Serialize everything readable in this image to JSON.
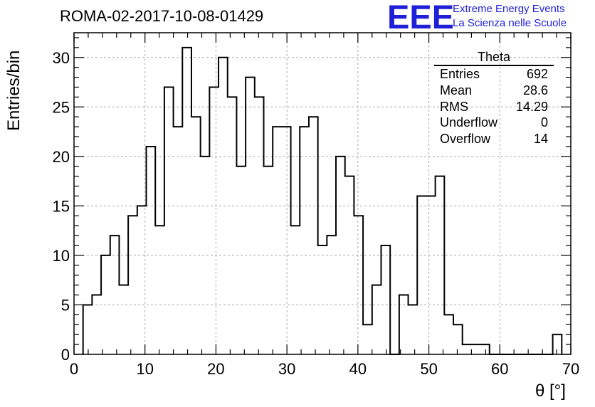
{
  "title": "ROMA-02-2017-10-08-01429",
  "logo": {
    "mark": "EEE",
    "line1": "Extreme Energy Events",
    "line2": "La Scienza nelle Scuole",
    "color": "#1f1fd8"
  },
  "stats": {
    "name": "Theta",
    "rows": [
      {
        "label": "Entries",
        "value": "692"
      },
      {
        "label": "Mean",
        "value": "28.6"
      },
      {
        "label": "RMS",
        "value": "14.29"
      },
      {
        "label": "Underflow",
        "value": "0"
      },
      {
        "label": "Overflow",
        "value": "14"
      }
    ]
  },
  "chart_data": {
    "type": "histogram",
    "xlabel": "θ [°]",
    "ylabel": "Entries/bin",
    "xlim": [
      0,
      70
    ],
    "ylim": [
      0,
      32.5
    ],
    "bin_width": 1.2727,
    "bin_edges_start": 1.2727,
    "values": [
      5,
      6,
      10,
      12,
      7,
      14,
      15,
      21,
      13,
      27,
      23,
      31,
      24,
      20,
      27,
      30,
      26,
      19,
      28,
      26,
      19,
      23,
      23,
      13,
      23,
      24,
      11,
      12,
      20,
      18,
      14,
      3,
      7,
      11,
      0,
      6,
      5,
      16,
      16,
      18,
      4,
      3,
      1,
      1,
      1,
      0,
      0,
      0,
      0,
      0,
      0,
      0,
      2
    ],
    "xticks": [
      0,
      10,
      20,
      30,
      40,
      50,
      60,
      70
    ],
    "yticks": [
      0,
      5,
      10,
      15,
      20,
      25,
      30
    ],
    "grid": true,
    "line_color": "#000000"
  }
}
